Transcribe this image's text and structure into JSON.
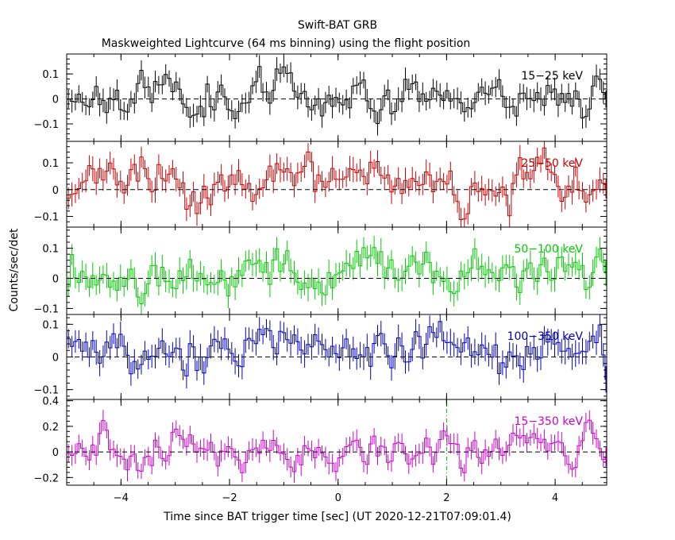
{
  "title": "Swift-BAT GRB",
  "subtitle": "Maskweighted Lightcurve (64 ms binning) using the flight position",
  "ylabel": "Counts/sec/det",
  "xlabel": "Time since BAT trigger time [sec] (UT 2020-12-21T07:09:01.4)",
  "colors": {
    "axis": "#000000",
    "band_15_25": "#000000",
    "band_25_50": "#cc0000",
    "band_50_100": "#00cc00",
    "band_100_350": "#0000bb",
    "band_15_350": "#cc00cc",
    "trigger_line": "#00bb00"
  },
  "chart_data": {
    "type": "line",
    "xlim": [
      -5.0,
      4.95
    ],
    "x_ticks": [
      -4,
      -2,
      0,
      2,
      4
    ],
    "x_tick_labels": [
      "−4",
      "−2",
      "0",
      "2",
      "4"
    ],
    "bin_seconds": 0.064,
    "zero_line": "dashed",
    "trigger_marker_x": 2.0,
    "panels": [
      {
        "name": "15−25 keV",
        "ylim": [
          -0.17,
          0.18
        ],
        "y_ticks": [
          -0.1,
          0,
          0.1
        ],
        "y_tick_labels": [
          "−0.1",
          "0",
          "0.1"
        ],
        "error": 0.04,
        "amp": 0.045,
        "seed": 11
      },
      {
        "name": "25−50 keV",
        "ylim": [
          -0.14,
          0.18
        ],
        "y_ticks": [
          -0.1,
          0,
          0.1
        ],
        "y_tick_labels": [
          "−0.1",
          "0",
          "0.1"
        ],
        "error": 0.04,
        "amp": 0.045,
        "seed": 23
      },
      {
        "name": "50−100 keV",
        "ylim": [
          -0.12,
          0.17
        ],
        "y_ticks": [
          -0.1,
          0,
          0.1
        ],
        "y_tick_labels": [
          "−0.1",
          "0",
          "0.1"
        ],
        "error": 0.038,
        "amp": 0.04,
        "seed": 37
      },
      {
        "name": "100−350 keV",
        "ylim": [
          -0.13,
          0.13
        ],
        "y_ticks": [
          -0.1,
          0,
          0.1
        ],
        "y_tick_labels": [
          "−0.1",
          "0",
          "0.1"
        ],
        "error": 0.035,
        "amp": 0.038,
        "seed": 53
      },
      {
        "name": "15−350 keV",
        "ylim": [
          -0.26,
          0.41
        ],
        "y_ticks": [
          -0.2,
          0,
          0.2,
          0.4
        ],
        "y_tick_labels": [
          "−0.2",
          "0",
          "0.2",
          "0.4"
        ],
        "error": 0.075,
        "amp": 0.08,
        "seed": 71
      }
    ]
  }
}
